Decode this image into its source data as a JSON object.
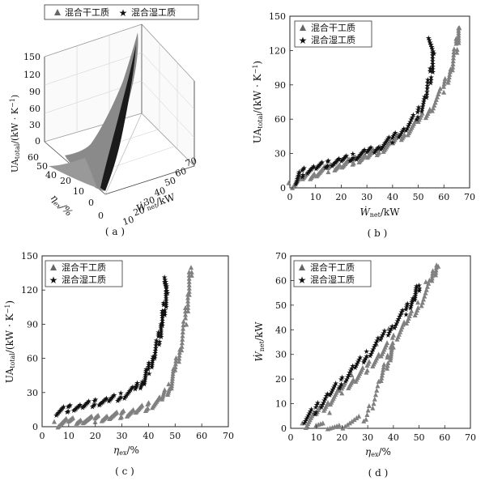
{
  "chart_data": [
    {
      "panel": "(a)",
      "type": "scatter3d",
      "legend": [
        "混合干工质",
        "混合湿工质"
      ],
      "legend_position": "top",
      "axes": {
        "z": {
          "label": "UA_total/(kW·K⁻¹)",
          "ticks": [
            0,
            30,
            60,
            90,
            120,
            150
          ],
          "range": [
            0,
            150
          ]
        },
        "eta": {
          "label": "η_ex/%",
          "ticks": [
            0,
            10,
            20,
            30,
            40,
            50,
            60
          ],
          "range": [
            0,
            60
          ]
        },
        "w": {
          "label": "Ẇ_net/kW",
          "ticks": [
            0,
            10,
            20,
            30,
            40,
            50,
            60,
            70
          ],
          "range": [
            0,
            70
          ]
        }
      },
      "series": [
        {
          "name": "混合干工质",
          "marker": "triangle",
          "color": "#808080",
          "points": [
            [
              5,
              8,
              3
            ],
            [
              15,
              18,
              8
            ],
            [
              25,
              30,
              15
            ],
            [
              35,
              42,
              25
            ],
            [
              45,
              52,
              40
            ],
            [
              55,
              60,
              70
            ],
            [
              66,
              62,
              138
            ]
          ]
        },
        {
          "name": "混合湿工质",
          "marker": "star",
          "color": "#111111",
          "points": [
            [
              5,
              8,
              6
            ],
            [
              15,
              20,
              12
            ],
            [
              25,
              32,
              20
            ],
            [
              35,
              40,
              30
            ],
            [
              45,
              45,
              50
            ],
            [
              55,
              47,
              110
            ]
          ]
        }
      ]
    },
    {
      "panel": "(b)",
      "type": "scatter",
      "xlabel": "Ẇ_net/kW",
      "ylabel": "UA_total/(kW·K⁻¹)",
      "xlim": [
        0,
        70
      ],
      "ylim": [
        0,
        150
      ],
      "xticks": [
        0,
        10,
        20,
        30,
        40,
        50,
        60,
        70
      ],
      "yticks": [
        0,
        30,
        60,
        90,
        120,
        150
      ],
      "legend": [
        "混合干工质",
        "混合湿工质"
      ],
      "legend_position": "top-left",
      "series": [
        {
          "name": "混合干工质",
          "marker": "triangle",
          "color": "#808080",
          "x": [
            0,
            5,
            10,
            15,
            20,
            25,
            30,
            35,
            40,
            45,
            50,
            55,
            60,
            63,
            65,
            66
          ],
          "y": [
            2,
            8,
            13,
            17,
            20,
            24,
            28,
            33,
            40,
            48,
            58,
            70,
            88,
            105,
            125,
            140
          ]
        },
        {
          "name": "混合湿工质",
          "marker": "star",
          "color": "#111111",
          "x": [
            2,
            5,
            10,
            15,
            20,
            25,
            30,
            35,
            40,
            45,
            50,
            53,
            55,
            56,
            54
          ],
          "y": [
            5,
            14,
            18,
            21,
            24,
            27,
            31,
            36,
            43,
            52,
            65,
            80,
            100,
            118,
            131
          ]
        }
      ]
    },
    {
      "panel": "(c)",
      "type": "scatter",
      "xlabel": "η_ex/%",
      "ylabel": "UA_total/(kW·K⁻¹)",
      "xlim": [
        0,
        70
      ],
      "ylim": [
        0,
        150
      ],
      "xticks": [
        0,
        10,
        20,
        30,
        40,
        50,
        60,
        70
      ],
      "yticks": [
        0,
        30,
        60,
        90,
        120,
        150
      ],
      "legend": [
        "混合干工质",
        "混合湿工质"
      ],
      "legend_position": "top-left",
      "series": [
        {
          "name": "混合干工质",
          "marker": "triangle",
          "color": "#808080",
          "x": [
            5,
            10,
            15,
            20,
            25,
            30,
            35,
            40,
            45,
            48,
            50,
            52,
            54,
            55,
            56
          ],
          "y": [
            2,
            5,
            6,
            7,
            9,
            11,
            14,
            18,
            25,
            35,
            50,
            70,
            95,
            118,
            140
          ]
        },
        {
          "name": "混合湿工质",
          "marker": "star",
          "color": "#111111",
          "x": [
            5,
            10,
            15,
            20,
            25,
            30,
            35,
            38,
            40,
            42,
            44,
            45,
            46,
            47,
            46
          ],
          "y": [
            12,
            16,
            18,
            21,
            23,
            27,
            33,
            40,
            50,
            62,
            78,
            90,
            105,
            118,
            131
          ]
        }
      ]
    },
    {
      "panel": "(d)",
      "type": "scatter",
      "xlabel": "η_ex/%",
      "ylabel": "Ẇ_net/kW",
      "xlim": [
        0,
        70
      ],
      "ylim": [
        0,
        70
      ],
      "xticks": [
        0,
        10,
        20,
        30,
        40,
        50,
        60,
        70
      ],
      "yticks": [
        0,
        10,
        20,
        30,
        40,
        50,
        60,
        70
      ],
      "legend": [
        "混合干工质",
        "混合湿工质"
      ],
      "legend_position": "top-left",
      "series": [
        {
          "name": "混合干工质",
          "marker": "triangle",
          "color": "#808080",
          "x": [
            5,
            10,
            15,
            20,
            25,
            30,
            35,
            40,
            45,
            50,
            55,
            57,
            10,
            20,
            30,
            35,
            38,
            40
          ],
          "y": [
            1,
            6,
            11,
            16,
            20,
            25,
            30,
            36,
            43,
            50,
            60,
            67,
            1,
            1,
            5,
            20,
            28,
            33
          ]
        },
        {
          "name": "混合湿工质",
          "marker": "star",
          "color": "#111111",
          "x": [
            5,
            10,
            15,
            20,
            25,
            30,
            35,
            40,
            45,
            48,
            50
          ],
          "y": [
            3,
            8,
            14,
            19,
            25,
            30,
            36,
            42,
            48,
            53,
            58
          ]
        }
      ]
    }
  ],
  "panels": {
    "a": {
      "caption": "( a )",
      "legend_dry": "混合干工质",
      "legend_wet": "混合湿工质"
    },
    "b": {
      "caption": "( b )",
      "legend_dry": "混合干工质",
      "legend_wet": "混合湿工质"
    },
    "c": {
      "caption": "( c )",
      "legend_dry": "混合干工质",
      "legend_wet": "混合湿工质"
    },
    "d": {
      "caption": "( d )",
      "legend_dry": "混合干工质",
      "legend_wet": "混合湿工质"
    }
  }
}
